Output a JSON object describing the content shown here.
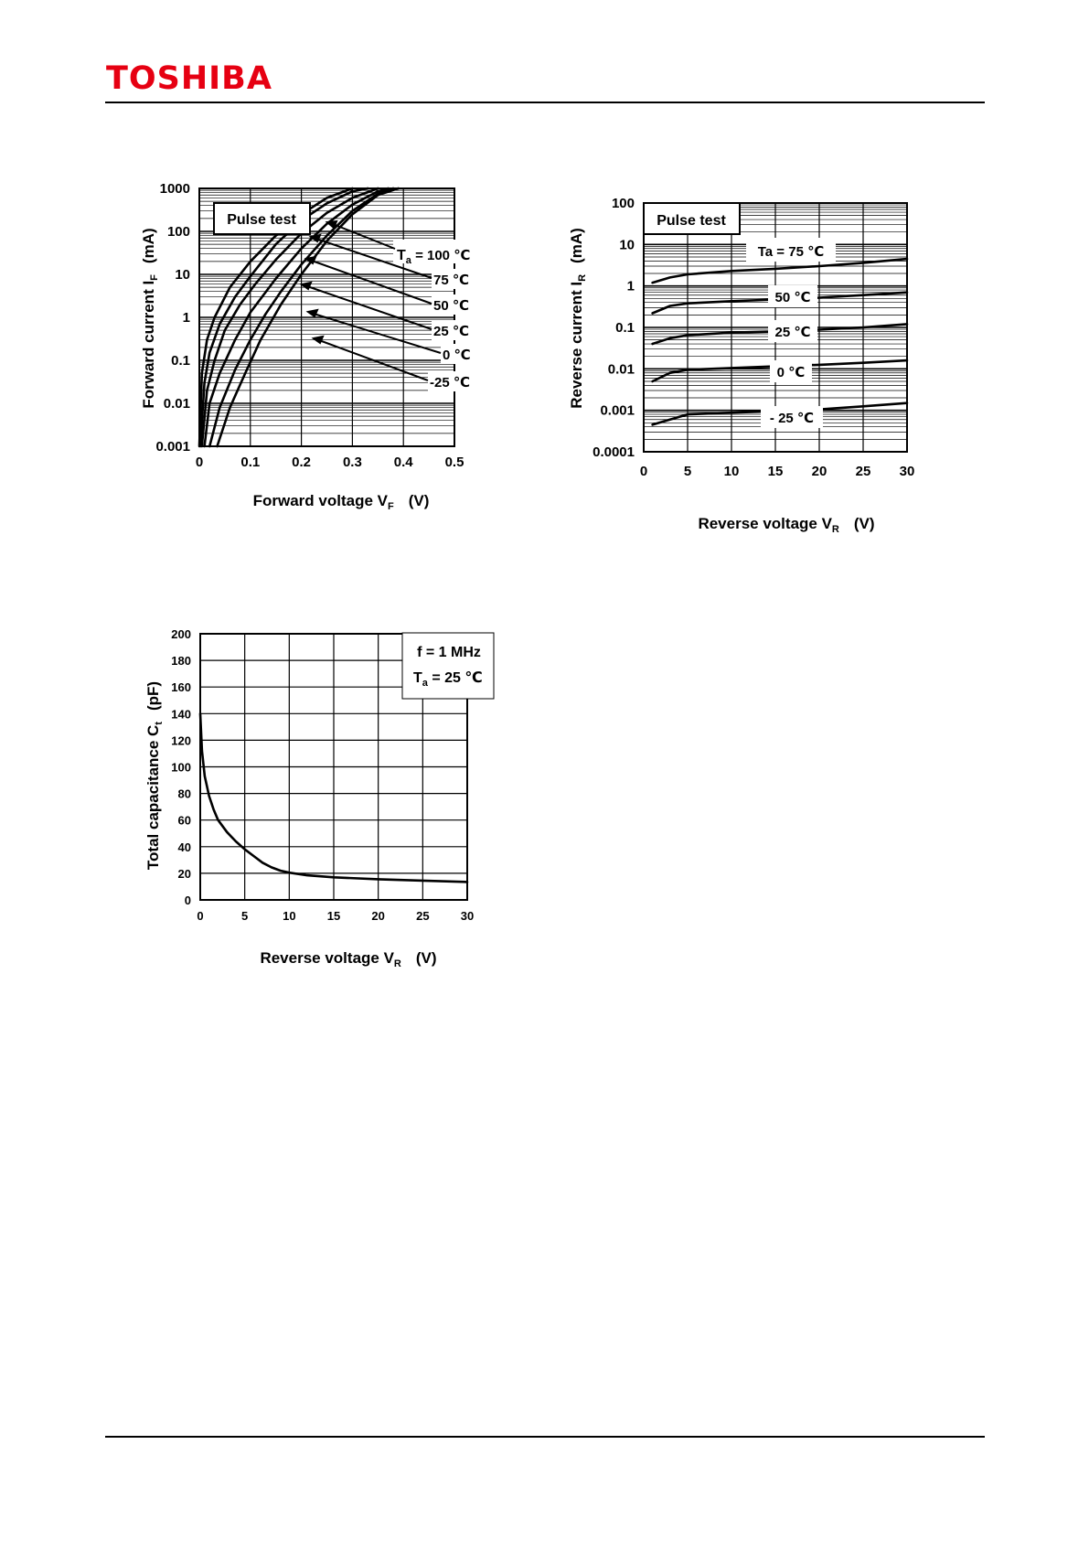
{
  "header": {
    "logo_text": "TOSHIBA"
  },
  "chart_data": [
    {
      "type": "line",
      "y_scale": "log",
      "xlabel": "Forward voltage  V",
      "xlabel_sub": "F",
      "xlabel_unit": "(V)",
      "ylabel": "Forward current  I",
      "ylabel_sub": "F",
      "ylabel_unit": "(mA)",
      "xlim": [
        0,
        0.5
      ],
      "ylim": [
        0.001,
        1000
      ],
      "x_ticks": [
        "0",
        "0.1",
        "0.2",
        "0.3",
        "0.4",
        "0.5"
      ],
      "y_ticks": [
        "0.001",
        "0.01",
        "0.1",
        "1",
        "10",
        "100",
        "1000"
      ],
      "grid": true,
      "legend_box": "Pulse test",
      "series": [
        {
          "name": "Ta = 100 °C",
          "x": [
            0.0,
            0.005,
            0.015,
            0.03,
            0.06,
            0.1,
            0.15,
            0.2,
            0.25,
            0.3
          ],
          "y": [
            0.001,
            0.05,
            0.3,
            1,
            5,
            20,
            80,
            250,
            600,
            1000
          ]
        },
        {
          "name": "75 °C",
          "x": [
            0.002,
            0.01,
            0.02,
            0.04,
            0.07,
            0.1,
            0.15,
            0.2,
            0.25,
            0.3,
            0.33
          ],
          "y": [
            0.001,
            0.03,
            0.15,
            0.7,
            3,
            9,
            50,
            180,
            450,
            850,
            1000
          ]
        },
        {
          "name": "50 °C",
          "x": [
            0.005,
            0.015,
            0.03,
            0.05,
            0.08,
            0.11,
            0.15,
            0.2,
            0.25,
            0.3,
            0.35
          ],
          "y": [
            0.001,
            0.02,
            0.1,
            0.5,
            2,
            6,
            22,
            90,
            270,
            600,
            1000
          ]
        },
        {
          "name": "25 °C",
          "x": [
            0.01,
            0.02,
            0.04,
            0.07,
            0.1,
            0.15,
            0.2,
            0.25,
            0.3,
            0.35,
            0.37
          ],
          "y": [
            0.001,
            0.01,
            0.05,
            0.3,
            1.3,
            8,
            40,
            150,
            420,
            850,
            1000
          ]
        },
        {
          "name": "0 °C",
          "x": [
            0.02,
            0.04,
            0.07,
            0.1,
            0.13,
            0.16,
            0.2,
            0.25,
            0.3,
            0.35,
            0.38
          ],
          "y": [
            0.001,
            0.008,
            0.06,
            0.3,
            1.2,
            4,
            17,
            80,
            300,
            750,
            1000
          ]
        },
        {
          "name": "-25 °C",
          "x": [
            0.035,
            0.06,
            0.09,
            0.12,
            0.16,
            0.2,
            0.25,
            0.3,
            0.35,
            0.39
          ],
          "y": [
            0.001,
            0.008,
            0.05,
            0.3,
            2,
            10,
            60,
            250,
            700,
            1000
          ]
        }
      ],
      "annotations": [
        "T",
        "a",
        " = 100 ℃",
        "75 ℃",
        "50 ℃",
        "25 ℃",
        "0 ℃",
        "-25 ℃"
      ]
    },
    {
      "type": "line",
      "y_scale": "log",
      "xlabel": "Reverse voltage  V",
      "xlabel_sub": "R",
      "xlabel_unit": "(V)",
      "ylabel": "Reverse current  I",
      "ylabel_sub": "R",
      "ylabel_unit": "(mA)",
      "xlim": [
        0,
        30
      ],
      "ylim": [
        0.0001,
        100
      ],
      "x_ticks": [
        "0",
        "5",
        "10",
        "15",
        "20",
        "25",
        "30"
      ],
      "y_ticks": [
        "0.0001",
        "0.001",
        "0.01",
        "0.1",
        "1",
        "10",
        "100"
      ],
      "grid": true,
      "legend_box": "Pulse test",
      "series": [
        {
          "name": "Ta = 75 ℃",
          "x": [
            1,
            3,
            5,
            10,
            15,
            20,
            25,
            30
          ],
          "y": [
            1.2,
            1.6,
            1.9,
            2.3,
            2.6,
            3.0,
            3.6,
            4.5
          ]
        },
        {
          "name": "50 ℃",
          "x": [
            1,
            3,
            5,
            10,
            15,
            20,
            25,
            30
          ],
          "y": [
            0.22,
            0.33,
            0.38,
            0.43,
            0.47,
            0.52,
            0.6,
            0.7
          ]
        },
        {
          "name": "25 ℃",
          "x": [
            1,
            3,
            5,
            10,
            15,
            20,
            25,
            30
          ],
          "y": [
            0.04,
            0.055,
            0.065,
            0.075,
            0.08,
            0.088,
            0.1,
            0.12
          ]
        },
        {
          "name": "0 ℃",
          "x": [
            1,
            3,
            5,
            10,
            15,
            20,
            25,
            30
          ],
          "y": [
            0.005,
            0.008,
            0.0095,
            0.0105,
            0.0115,
            0.0125,
            0.014,
            0.016
          ]
        },
        {
          "name": "- 25 ℃",
          "x": [
            1,
            3,
            5,
            10,
            15,
            20,
            25,
            30
          ],
          "y": [
            0.00045,
            0.0006,
            0.0008,
            0.00088,
            0.00095,
            0.00105,
            0.00125,
            0.0015
          ]
        }
      ],
      "annotations": [
        "Ta = 75 ℃",
        "50 ℃",
        "25 ℃",
        "0 ℃",
        "- 25 ℃"
      ]
    },
    {
      "type": "line",
      "xlabel": "Reverse voltage  V",
      "xlabel_sub": "R",
      "xlabel_unit": "(V)",
      "ylabel": "Total capacitance  C",
      "ylabel_sub": "t",
      "ylabel_unit": "(pF)",
      "xlim": [
        0,
        30
      ],
      "ylim": [
        0,
        200
      ],
      "x_ticks": [
        "0",
        "5",
        "10",
        "15",
        "20",
        "25",
        "30"
      ],
      "y_ticks": [
        "0",
        "20",
        "40",
        "60",
        "80",
        "100",
        "120",
        "140",
        "160",
        "180",
        "200"
      ],
      "grid": true,
      "legend_lines": [
        "f = 1 MHz",
        "T",
        "a",
        " = 25  ℃"
      ],
      "series": [
        {
          "name": "",
          "x": [
            0,
            0.2,
            0.5,
            1,
            1.5,
            2,
            3,
            4,
            5,
            6,
            7,
            8,
            9,
            10,
            12,
            15,
            20,
            25,
            30
          ],
          "y": [
            140,
            112,
            93,
            78,
            68,
            60,
            51,
            44,
            38,
            33,
            28,
            24.5,
            22,
            20.5,
            18.5,
            17,
            15.5,
            14.5,
            13.5
          ]
        }
      ]
    }
  ]
}
